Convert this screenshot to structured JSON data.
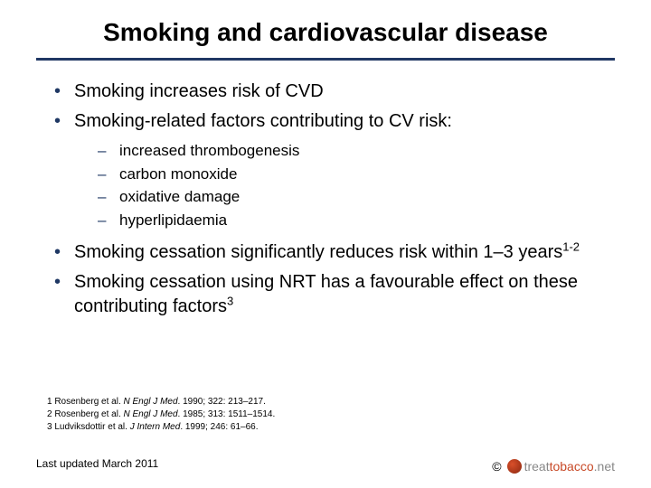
{
  "title": "Smoking and cardiovascular disease",
  "colors": {
    "rule": "#203864",
    "bullet": "#1f3864",
    "text": "#000000",
    "background": "#ffffff",
    "logo_mark": "#c84a28",
    "logo_secondary": "#888888"
  },
  "bullets": {
    "b1": "Smoking increases risk of CVD",
    "b2": "Smoking-related factors contributing to CV risk:",
    "sub": {
      "s1": "increased thrombogenesis",
      "s2": "carbon monoxide",
      "s3": "oxidative damage",
      "s4": "hyperlipidaemia"
    },
    "b3_pre": "Smoking cessation significantly reduces risk within 1–3 years",
    "b3_sup": "1-2",
    "b4_pre": "Smoking cessation using NRT has a favourable effect on these contributing factors",
    "b4_sup": "3"
  },
  "refs": {
    "r1_pre": "1 Rosenberg et al. ",
    "r1_ital": "N Engl J Med",
    "r1_post": ". 1990; 322: 213–217.",
    "r2_pre": "2 Rosenberg et al. ",
    "r2_ital": "N Engl J Med",
    "r2_post": ". 1985;  313: 1511–1514.",
    "r3_pre": "3 Ludviksdottir et al. ",
    "r3_ital": "J Intern Med",
    "r3_post": ". 1999; 246: 61–66."
  },
  "footer": {
    "updated": "Last updated March 2011",
    "copyright": "©",
    "logo_treat": "treat",
    "logo_tob": "tobacco",
    "logo_net": ".net"
  },
  "typography": {
    "title_fontsize": 28,
    "body_fontsize": 20,
    "sub_fontsize": 17,
    "refs_fontsize": 10,
    "footer_fontsize": 12
  }
}
